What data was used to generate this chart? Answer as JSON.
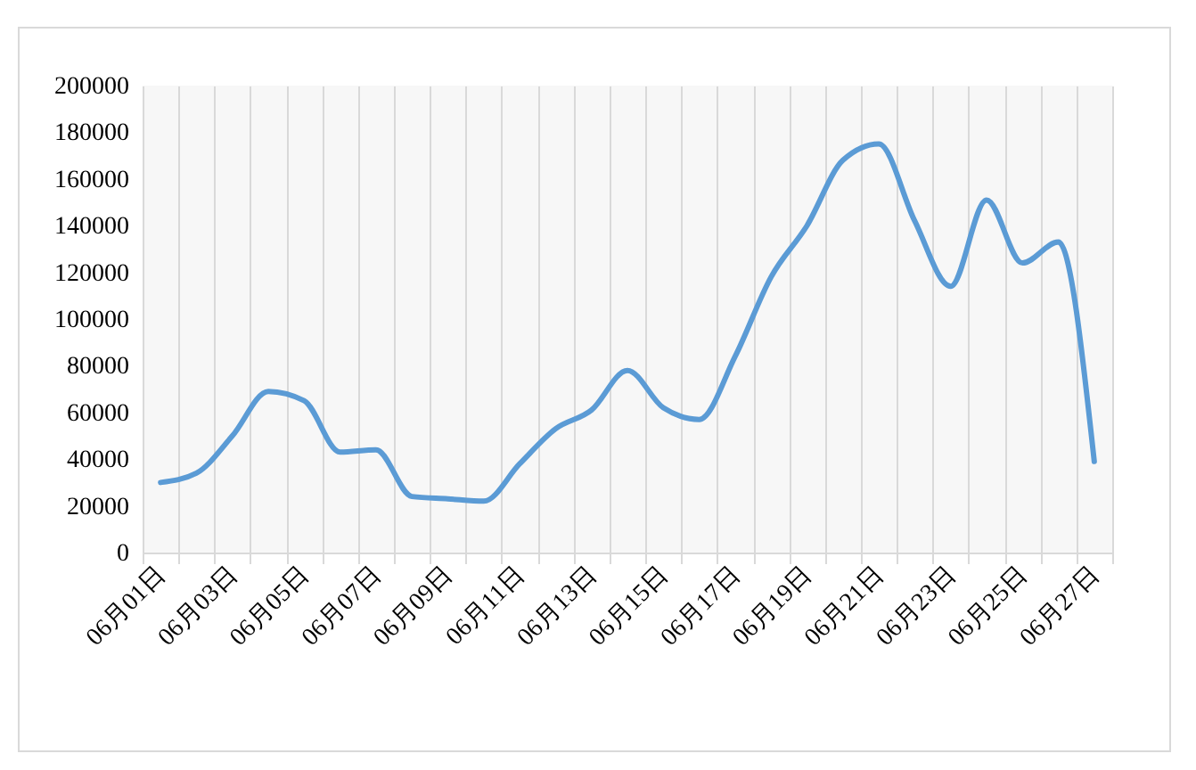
{
  "chart_data": {
    "type": "line",
    "categories": [
      "06月01日",
      null,
      "06月03日",
      null,
      "06月05日",
      null,
      "06月07日",
      null,
      "06月09日",
      null,
      "06月11日",
      null,
      "06月13日",
      null,
      "06月15日",
      null,
      "06月17日",
      null,
      "06月19日",
      null,
      "06月21日",
      null,
      "06月23日",
      null,
      "06月25日",
      null,
      "06月27日"
    ],
    "series": [
      {
        "color": "#5b9bd5",
        "values": [
          30000,
          34000,
          50000,
          69000,
          65000,
          43000,
          44000,
          24000,
          23000,
          22000,
          38000,
          53000,
          61000,
          78000,
          62000,
          57000,
          84000,
          118000,
          140000,
          168000,
          175000,
          142000,
          114000,
          151000,
          124000,
          133000,
          39000
        ]
      }
    ],
    "ylim": [
      0,
      200000
    ],
    "yticks": [
      0,
      20000,
      40000,
      60000,
      80000,
      100000,
      120000,
      140000,
      160000,
      180000,
      200000
    ],
    "grid": "x",
    "marker": "none",
    "line_style": "solid"
  }
}
